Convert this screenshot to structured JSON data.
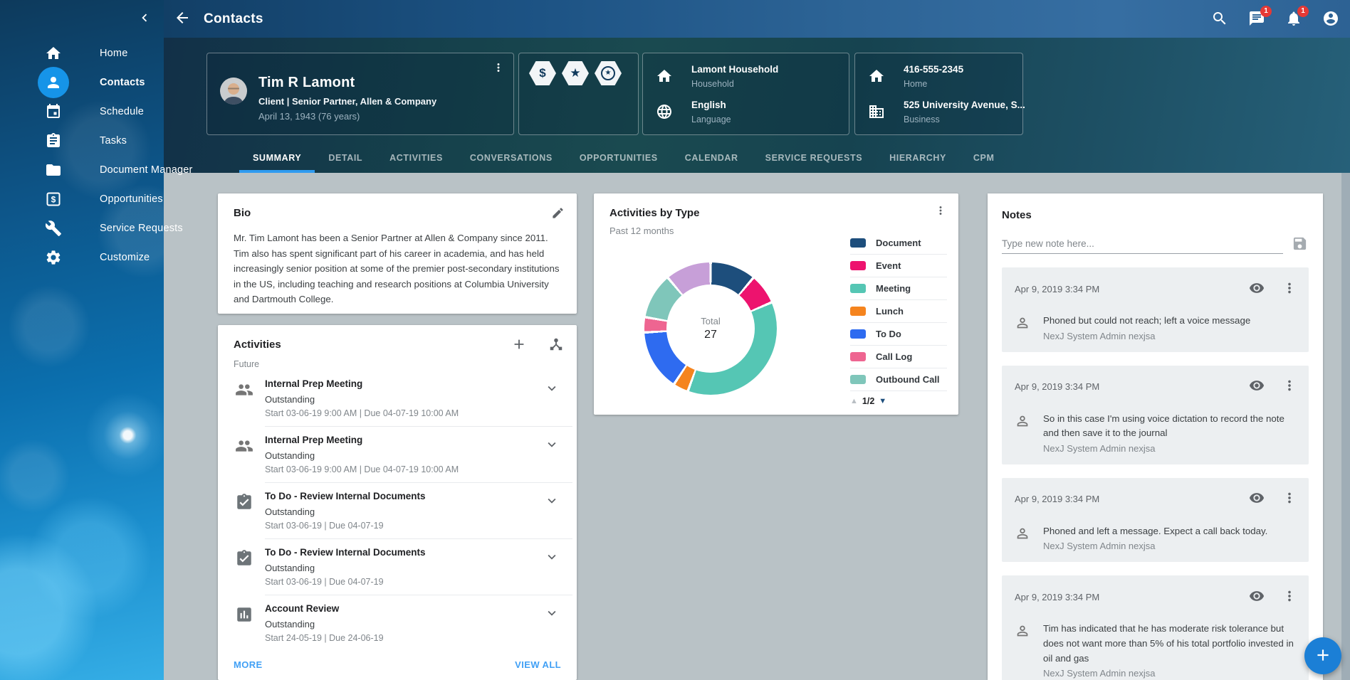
{
  "header": {
    "title": "Contacts",
    "chat_badge": "1",
    "notifications_badge": "1"
  },
  "sidebar": {
    "items": [
      {
        "label": "Home",
        "icon": "home-icon",
        "active": false
      },
      {
        "label": "Contacts",
        "icon": "person-icon",
        "active": true
      },
      {
        "label": "Schedule",
        "icon": "calendar-icon",
        "active": false
      },
      {
        "label": "Tasks",
        "icon": "tasks-icon",
        "active": false
      },
      {
        "label": "Document Manager",
        "icon": "folder-icon",
        "active": false
      },
      {
        "label": "Opportunities",
        "icon": "dollar-box-icon",
        "active": false
      },
      {
        "label": "Service Requests",
        "icon": "wrench-icon",
        "active": false
      },
      {
        "label": "Customize",
        "icon": "gear-icon",
        "active": false
      }
    ]
  },
  "profile": {
    "name": "Tim R Lamont",
    "subtitle": "Client | Senior Partner, Allen & Company",
    "birthdate": "April 13, 1943 (76 years)",
    "badges": [
      "dollar-hexagon",
      "star-hexagon",
      "star-circle-hexagon"
    ]
  },
  "info": {
    "household": {
      "value": "Lamont Household",
      "label": "Household"
    },
    "language": {
      "value": "English",
      "label": "Language"
    },
    "phone": {
      "value": "416-555-2345",
      "label": "Home"
    },
    "address": {
      "value": "525 University Avenue, S...",
      "label": "Business"
    }
  },
  "tabs": {
    "items": [
      "SUMMARY",
      "DETAIL",
      "ACTIVITIES",
      "CONVERSATIONS",
      "OPPORTUNITIES",
      "CALENDAR",
      "SERVICE REQUESTS",
      "HIERARCHY",
      "CPM"
    ],
    "active": "SUMMARY"
  },
  "bio": {
    "title": "Bio",
    "text": "Mr. Tim Lamont has been a Senior Partner at Allen & Company since 2011. Tim also has spent significant part of his career in academia, and has held increasingly senior position at some of the premier post-secondary institutions in the US, including teaching and research positions at Columbia University and Dartmouth College."
  },
  "activities": {
    "title": "Activities",
    "group_label": "Future",
    "items": [
      {
        "icon": "people-icon",
        "title": "Internal Prep Meeting",
        "status": "Outstanding",
        "dates": "Start 03-06-19 9:00 AM | Due 04-07-19 10:00 AM"
      },
      {
        "icon": "people-icon",
        "title": "Internal Prep Meeting",
        "status": "Outstanding",
        "dates": "Start 03-06-19 9:00 AM | Due 04-07-19 10:00 AM"
      },
      {
        "icon": "task-check-icon",
        "title": "To Do - Review Internal Documents",
        "status": "Outstanding",
        "dates": "Start 03-06-19 | Due 04-07-19"
      },
      {
        "icon": "task-check-icon",
        "title": "To Do - Review Internal Documents",
        "status": "Outstanding",
        "dates": "Start 03-06-19 | Due 04-07-19"
      },
      {
        "icon": "bar-chart-icon",
        "title": "Account Review",
        "status": "Outstanding",
        "dates": "Start 24-05-19 | Due 24-06-19"
      }
    ],
    "more_label": "MORE",
    "view_all_label": "VIEW ALL"
  },
  "chart_card": {
    "title": "Activities by Type",
    "subtitle": "Past 12 months",
    "total_label": "Total",
    "total_value": "27",
    "pagination": "1/2"
  },
  "chart_data": {
    "type": "pie",
    "title": "Activities by Type",
    "subtitle": "Past 12 months",
    "total": 27,
    "legend_position": "right",
    "legend_page": "1/2",
    "legend_visible_count": 7,
    "segments": [
      {
        "label": "Document",
        "value": 3,
        "color": "#1d4e7c"
      },
      {
        "label": "Event",
        "value": 2,
        "color": "#ed136e"
      },
      {
        "label": "Meeting",
        "value": 10,
        "color": "#55c6b4"
      },
      {
        "label": "Lunch",
        "value": 1,
        "color": "#f5841e"
      },
      {
        "label": "To Do",
        "value": 4,
        "color": "#2e6bf0"
      },
      {
        "label": "Call Log",
        "value": 1,
        "color": "#ee6591"
      },
      {
        "label": "Outbound Call",
        "value": 3,
        "color": "#7fc6ba"
      },
      {
        "label": "",
        "value": 3,
        "color": "#c79fd8"
      }
    ]
  },
  "notes": {
    "title": "Notes",
    "input_placeholder": "Type new note here...",
    "items": [
      {
        "date": "Apr 9, 2019 3:34 PM",
        "text": "Phoned but could not reach; left a voice message",
        "author": "NexJ System Admin nexjsa"
      },
      {
        "date": "Apr 9, 2019 3:34 PM",
        "text": "So in this case I'm using voice dictation to record the note and then save it to the journal",
        "author": "NexJ System Admin nexjsa"
      },
      {
        "date": "Apr 9, 2019 3:34 PM",
        "text": "Phoned and left a message. Expect a call back today.",
        "author": "NexJ System Admin nexjsa"
      },
      {
        "date": "Apr 9, 2019 3:34 PM",
        "text": "Tim has indicated that he has moderate risk tolerance but does not want more than 5% of his total portfolio invested in oil and gas",
        "author": "NexJ System Admin nexjsa"
      }
    ]
  }
}
